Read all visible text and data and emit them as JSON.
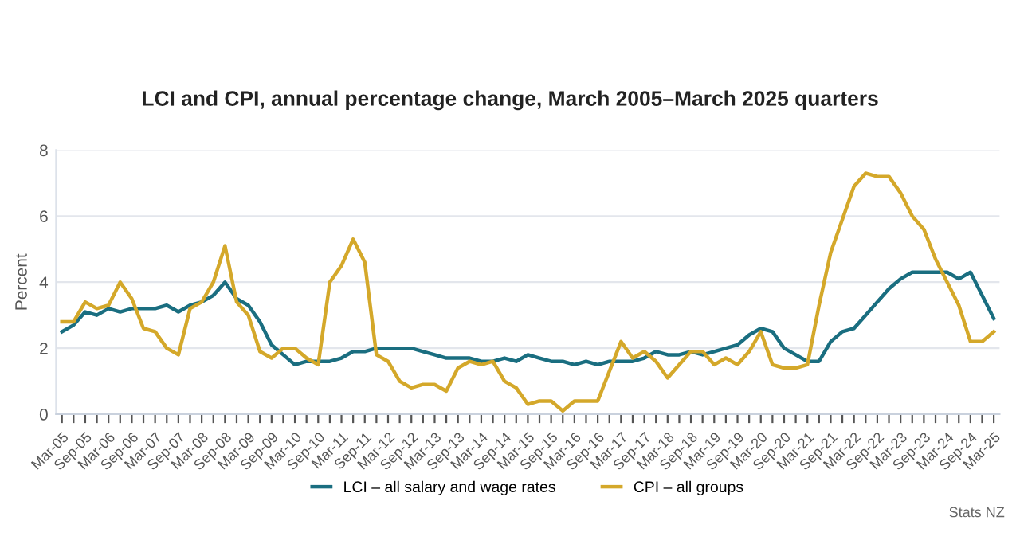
{
  "chart_data": {
    "type": "line",
    "title": "LCI and CPI, annual percentage change, March 2005–March 2025 quarters",
    "ylabel": "Percent",
    "categories": [
      "Mar-05",
      null,
      "Sep-05",
      null,
      "Mar-06",
      null,
      "Sep-06",
      null,
      "Mar-07",
      null,
      "Sep-07",
      null,
      "Mar-08",
      null,
      "Sep-08",
      null,
      "Mar-09",
      null,
      "Sep-09",
      null,
      "Mar-10",
      null,
      "Sep-10",
      null,
      "Mar-11",
      null,
      "Sep-11",
      null,
      "Mar-12",
      null,
      "Sep-12",
      null,
      "Mar-13",
      null,
      "Sep-13",
      null,
      "Mar-14",
      null,
      "Sep-14",
      null,
      "Mar-15",
      null,
      "Sep-15",
      null,
      "Mar-16",
      null,
      "Sep-16",
      null,
      "Mar-17",
      null,
      "Sep-17",
      null,
      "Mar-18",
      null,
      "Sep-18",
      null,
      "Mar-19",
      null,
      "Sep-19",
      null,
      "Mar-20",
      null,
      "Sep-20",
      null,
      "Mar-21",
      null,
      "Sep-21",
      null,
      "Mar-22",
      null,
      "Sep-22",
      null,
      "Mar-23",
      null,
      "Sep-23",
      null,
      "Mar-24",
      null,
      "Sep-24",
      null,
      "Mar-25"
    ],
    "series": [
      {
        "name": "LCI – all salary and wage rates",
        "color": "#1a6e80",
        "values": [
          2.5,
          2.7,
          3.1,
          3.0,
          3.2,
          3.1,
          3.2,
          3.2,
          3.2,
          3.3,
          3.1,
          3.3,
          3.4,
          3.6,
          4.0,
          3.5,
          3.3,
          2.8,
          2.1,
          1.8,
          1.5,
          1.6,
          1.6,
          1.6,
          1.7,
          1.9,
          1.9,
          2.0,
          2.0,
          2.0,
          2.0,
          1.9,
          1.8,
          1.7,
          1.7,
          1.7,
          1.6,
          1.6,
          1.7,
          1.6,
          1.8,
          1.7,
          1.6,
          1.6,
          1.5,
          1.6,
          1.5,
          1.6,
          1.6,
          1.6,
          1.7,
          1.9,
          1.8,
          1.8,
          1.9,
          1.8,
          1.9,
          2.0,
          2.1,
          2.4,
          2.6,
          2.5,
          2.0,
          1.8,
          1.6,
          1.6,
          2.2,
          2.5,
          2.6,
          3.0,
          3.4,
          3.8,
          4.1,
          4.3,
          4.3,
          4.3,
          4.3,
          4.1,
          4.3,
          3.6,
          2.9
        ]
      },
      {
        "name": "CPI – all groups",
        "color": "#d4a82a",
        "values": [
          2.8,
          2.8,
          3.4,
          3.2,
          3.3,
          4.0,
          3.5,
          2.6,
          2.5,
          2.0,
          1.8,
          3.2,
          3.4,
          4.0,
          5.1,
          3.4,
          3.0,
          1.9,
          1.7,
          2.0,
          2.0,
          1.7,
          1.5,
          4.0,
          4.5,
          5.3,
          4.6,
          1.8,
          1.6,
          1.0,
          0.8,
          0.9,
          0.9,
          0.7,
          1.4,
          1.6,
          1.5,
          1.6,
          1.0,
          0.8,
          0.3,
          0.4,
          0.4,
          0.1,
          0.4,
          0.4,
          0.4,
          1.3,
          2.2,
          1.7,
          1.9,
          1.6,
          1.1,
          1.5,
          1.9,
          1.9,
          1.5,
          1.7,
          1.5,
          1.9,
          2.5,
          1.5,
          1.4,
          1.4,
          1.5,
          3.3,
          4.9,
          5.9,
          6.9,
          7.3,
          7.2,
          7.2,
          6.7,
          6.0,
          5.6,
          4.7,
          4.0,
          3.3,
          2.2,
          2.2,
          2.5
        ]
      }
    ],
    "ylim": [
      0,
      8
    ],
    "yticks": [
      0,
      2,
      4,
      6,
      8
    ],
    "grid": "y",
    "legend": "bottom",
    "marker": "none",
    "line_style": "solid",
    "annotations": [
      "Stats NZ"
    ]
  }
}
